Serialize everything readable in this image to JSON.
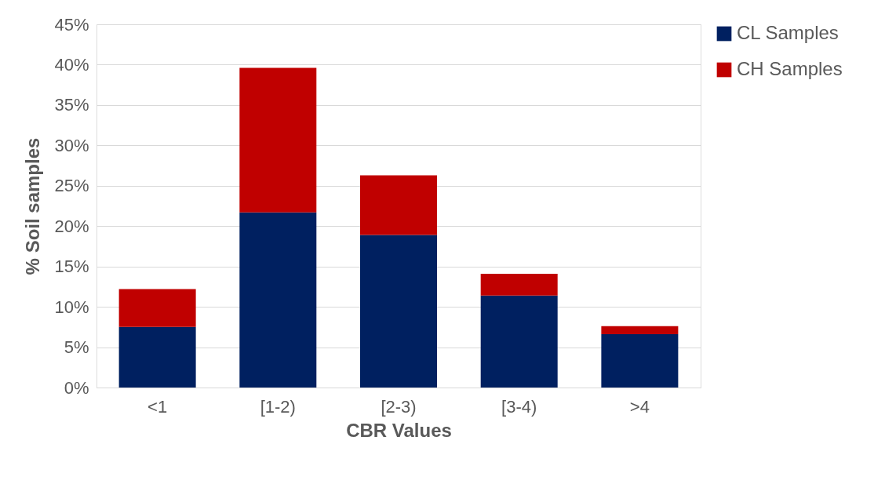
{
  "chart_data": {
    "type": "bar",
    "stacked": true,
    "xlabel": "CBR Values",
    "ylabel": "% Soil samples",
    "categories": [
      "<1",
      "[1-2)",
      "[2-3)",
      "[3-4)",
      ">4"
    ],
    "series": [
      {
        "name": "CL Samples",
        "color": "#002060",
        "values": [
          7.5,
          21.7,
          18.9,
          11.4,
          6.6
        ]
      },
      {
        "name": "CH Samples",
        "color": "#c00000",
        "values": [
          4.7,
          17.9,
          7.4,
          2.7,
          1.0
        ]
      }
    ],
    "ylim": [
      0,
      45
    ],
    "yticks": [
      {
        "value": 0,
        "label": "0%"
      },
      {
        "value": 5,
        "label": "5%"
      },
      {
        "value": 10,
        "label": "10%"
      },
      {
        "value": 15,
        "label": "15%"
      },
      {
        "value": 20,
        "label": "20%"
      },
      {
        "value": 25,
        "label": "25%"
      },
      {
        "value": 30,
        "label": "30%"
      },
      {
        "value": 35,
        "label": "35%"
      },
      {
        "value": 40,
        "label": "40%"
      },
      {
        "value": 45,
        "label": "45%"
      }
    ],
    "grid": "y",
    "legend": "right"
  }
}
